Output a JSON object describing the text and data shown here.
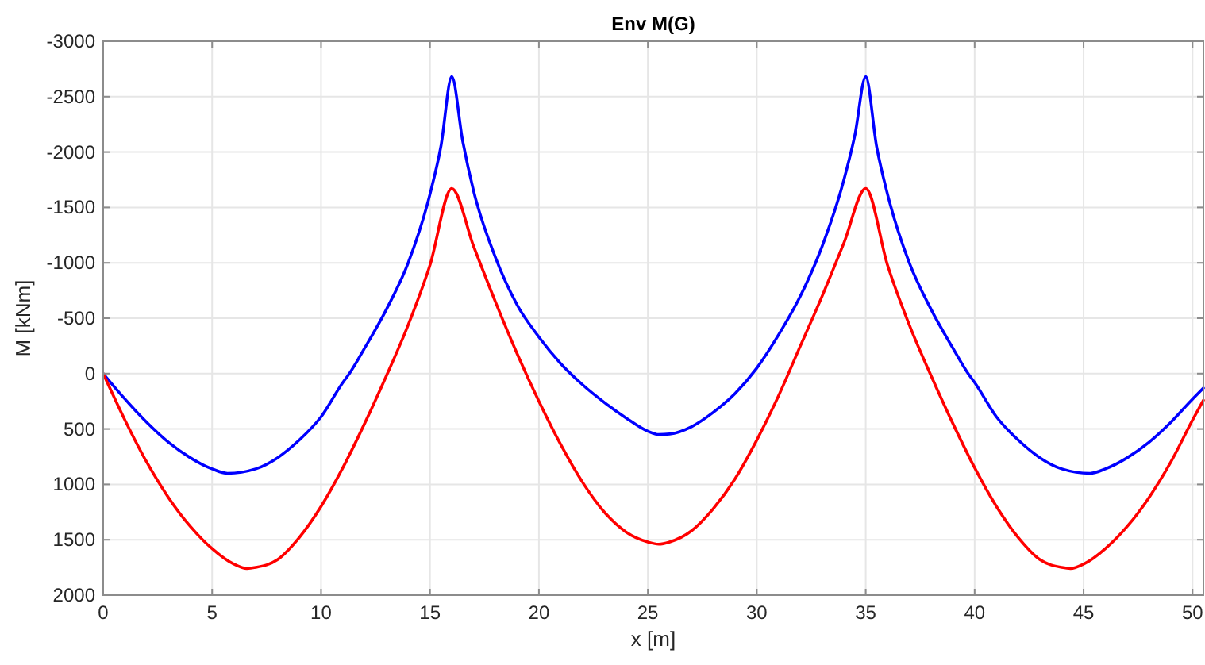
{
  "chart_data": {
    "type": "line",
    "title": "Env M(G)",
    "xlabel": "x [m]",
    "ylabel": "M [kNm]",
    "xlim": [
      0,
      50.5
    ],
    "xticks": [
      0,
      5,
      10,
      15,
      20,
      25,
      30,
      35,
      40,
      45,
      50
    ],
    "ylim": [
      2000,
      -3000
    ],
    "yticks": [
      -3000,
      -2500,
      -2000,
      -1500,
      -1000,
      -500,
      0,
      500,
      1000,
      1500,
      2000
    ],
    "grid": true,
    "marker": "none",
    "line_style": "solid",
    "series": [
      {
        "color": "#0000ff",
        "x": [
          0,
          1,
          2,
          3,
          4,
          5,
          5.7,
          7,
          8,
          9,
          10,
          11,
          11.3,
          12,
          13,
          14,
          15,
          15.5,
          16,
          16.5,
          17,
          18,
          19,
          20,
          21,
          22,
          23,
          24,
          25,
          25.5,
          26,
          27,
          28,
          29,
          30,
          31,
          32,
          33,
          34,
          34.5,
          35,
          35.5,
          36,
          37,
          38,
          39,
          39.7,
          40,
          41,
          42,
          43,
          44,
          45.3,
          46,
          47,
          48,
          49,
          50,
          50.5
        ],
        "values": [
          0,
          230,
          440,
          620,
          760,
          860,
          900,
          860,
          760,
          600,
          390,
          80,
          0,
          -230,
          -580,
          -1000,
          -1620,
          -2050,
          -2680,
          -2100,
          -1650,
          -1050,
          -620,
          -330,
          -90,
          100,
          260,
          400,
          520,
          550,
          545,
          480,
          350,
          180,
          -50,
          -350,
          -700,
          -1150,
          -1750,
          -2150,
          -2680,
          -2050,
          -1620,
          -1000,
          -580,
          -230,
          0,
          80,
          390,
          600,
          760,
          860,
          900,
          860,
          760,
          620,
          440,
          230,
          130
        ]
      },
      {
        "color": "#ff0000",
        "x": [
          0,
          1,
          2,
          3,
          4,
          5,
          6,
          6.6,
          7,
          8,
          9,
          10,
          11,
          12,
          13,
          14,
          15,
          16,
          17,
          18,
          19,
          20,
          21,
          22,
          23,
          24,
          25,
          25.5,
          26,
          27,
          28,
          29,
          30,
          31,
          32,
          33,
          34,
          35,
          36,
          37,
          38,
          39,
          40,
          41,
          42,
          43,
          44,
          44.4,
          45,
          46,
          47,
          48,
          49,
          50,
          50.5
        ],
        "values": [
          0,
          420,
          800,
          1120,
          1380,
          1580,
          1720,
          1760,
          1750,
          1680,
          1480,
          1200,
          850,
          450,
          20,
          -440,
          -980,
          -1670,
          -1150,
          -650,
          -180,
          250,
          640,
          980,
          1250,
          1430,
          1520,
          1540,
          1520,
          1420,
          1220,
          950,
          600,
          200,
          -250,
          -700,
          -1180,
          -1670,
          -980,
          -440,
          20,
          450,
          850,
          1200,
          1480,
          1680,
          1750,
          1760,
          1720,
          1580,
          1380,
          1120,
          800,
          420,
          240
        ]
      }
    ]
  }
}
